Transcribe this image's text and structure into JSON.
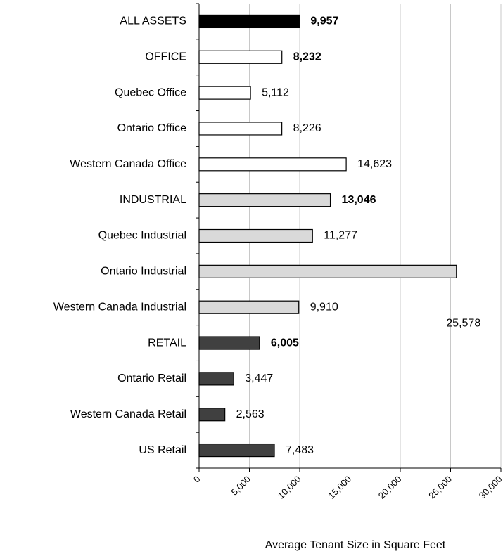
{
  "chart_data": {
    "type": "bar",
    "orientation": "horizontal",
    "x_axis_label": "Average Tenant Size in Square Feet",
    "categories": [
      "ALL ASSETS",
      "OFFICE",
      "Quebec Office",
      "Ontario Office",
      "Western Canada Office",
      "INDUSTRIAL",
      "Quebec Industrial",
      "Ontario Industrial",
      "Western Canada Industrial",
      "RETAIL",
      "Ontario Retail",
      "Western Canada Retail",
      "US Retail"
    ],
    "values": [
      9957,
      8232,
      5112,
      8226,
      14623,
      13046,
      11277,
      25578,
      9910,
      6005,
      3447,
      2563,
      7483
    ],
    "value_labels": [
      "9,957",
      "8,232",
      "5,112",
      "8,226",
      "14,623",
      "13,046",
      "11,277",
      "25,578",
      "9,910",
      "6,005",
      "3,447",
      "2,563",
      "7,483"
    ],
    "colors": [
      "#000000",
      "#ffffff",
      "#ffffff",
      "#ffffff",
      "#ffffff",
      "#d9d9d9",
      "#d9d9d9",
      "#d9d9d9",
      "#d9d9d9",
      "#404040",
      "#404040",
      "#404040",
      "#404040"
    ],
    "value_label_bold": [
      true,
      true,
      false,
      false,
      false,
      true,
      false,
      false,
      false,
      true,
      false,
      false,
      false
    ],
    "xlim": [
      0,
      30000
    ],
    "xticks": [
      0,
      {
        "value": 5000,
        "label": "5,000"
      },
      {
        "value": 10000,
        "label": "10,000"
      },
      {
        "value": 15000,
        "label": "15,000"
      },
      {
        "value": 20000,
        "label": "20,000"
      },
      {
        "value": 25000,
        "label": "25,000"
      },
      {
        "value": 30000,
        "label": "30,000"
      }
    ],
    "grid": true
  }
}
